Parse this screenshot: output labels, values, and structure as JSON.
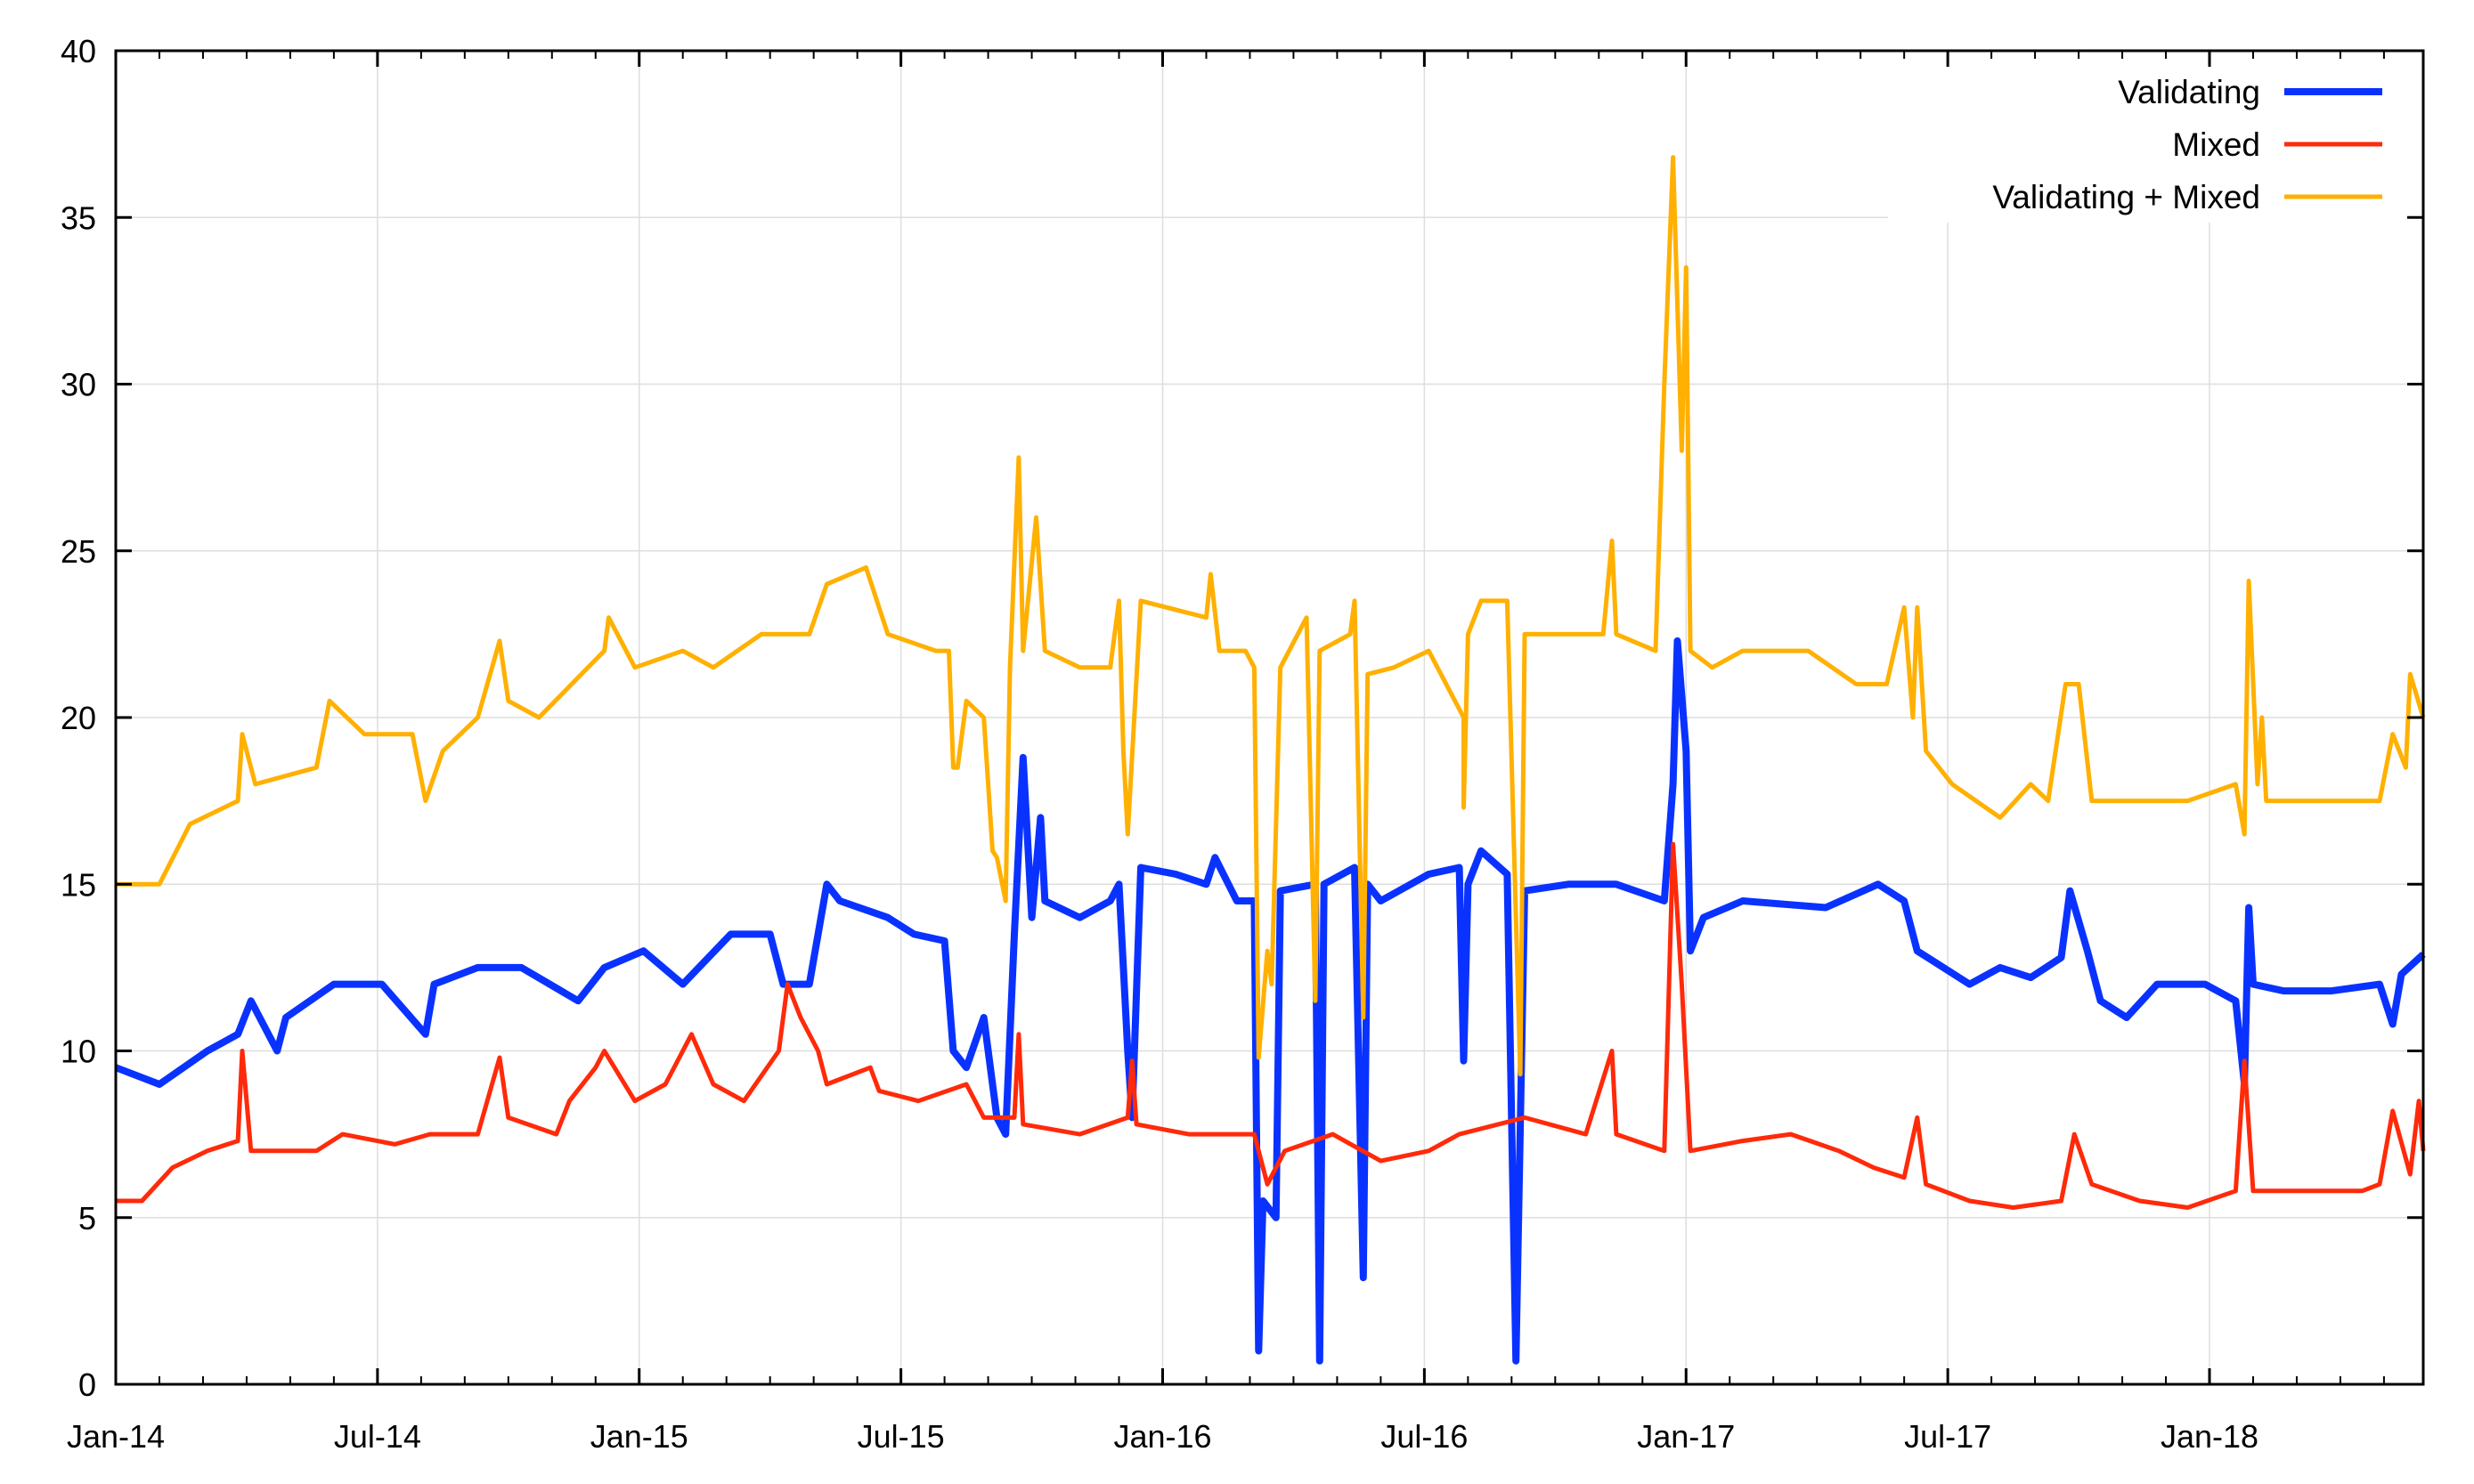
{
  "chart_data": {
    "type": "line",
    "title": "",
    "xlabel": "",
    "ylabel": "",
    "x_unit": "months since Jan-14",
    "xlim": [
      0,
      52.9
    ],
    "ylim": [
      0,
      40
    ],
    "grid": true,
    "legend_position": "top-right",
    "x_ticks": [
      {
        "value": 0,
        "label": "Jan-14"
      },
      {
        "value": 6,
        "label": "Jul-14"
      },
      {
        "value": 12,
        "label": "Jan-15"
      },
      {
        "value": 18,
        "label": "Jul-15"
      },
      {
        "value": 24,
        "label": "Jan-16"
      },
      {
        "value": 30,
        "label": "Jul-16"
      },
      {
        "value": 36,
        "label": "Jan-17"
      },
      {
        "value": 42,
        "label": "Jul-17"
      },
      {
        "value": 48,
        "label": "Jan-18"
      }
    ],
    "y_ticks": [
      {
        "value": 0,
        "label": "0"
      },
      {
        "value": 5,
        "label": "5"
      },
      {
        "value": 10,
        "label": "10"
      },
      {
        "value": 15,
        "label": "15"
      },
      {
        "value": 20,
        "label": "20"
      },
      {
        "value": 25,
        "label": "25"
      },
      {
        "value": 30,
        "label": "30"
      },
      {
        "value": 35,
        "label": "35"
      },
      {
        "value": 40,
        "label": "40"
      }
    ],
    "series": [
      {
        "name": "Validating",
        "color": "#0a32ff",
        "points": [
          [
            0,
            9.5
          ],
          [
            1.0,
            9
          ],
          [
            2.1,
            10
          ],
          [
            2.8,
            10.5
          ],
          [
            3.1,
            11.5
          ],
          [
            3.7,
            10
          ],
          [
            3.9,
            11
          ],
          [
            5.0,
            12
          ],
          [
            6.1,
            12
          ],
          [
            7.1,
            10.5
          ],
          [
            7.3,
            12
          ],
          [
            8.3,
            12.5
          ],
          [
            9.3,
            12.5
          ],
          [
            10.6,
            11.5
          ],
          [
            11.2,
            12.5
          ],
          [
            12.1,
            13
          ],
          [
            13.0,
            12
          ],
          [
            14.1,
            13.5
          ],
          [
            15.0,
            13.5
          ],
          [
            15.3,
            12
          ],
          [
            15.9,
            12
          ],
          [
            16.3,
            15
          ],
          [
            16.6,
            14.5
          ],
          [
            17.7,
            14
          ],
          [
            18.3,
            13.5
          ],
          [
            19.0,
            13.3
          ],
          [
            19.2,
            10
          ],
          [
            19.5,
            9.5
          ],
          [
            19.9,
            11
          ],
          [
            20.2,
            8
          ],
          [
            20.4,
            7.5
          ],
          [
            20.6,
            13.5
          ],
          [
            20.8,
            18.8
          ],
          [
            21.0,
            14
          ],
          [
            21.2,
            17
          ],
          [
            21.3,
            14.5
          ],
          [
            22.1,
            14
          ],
          [
            22.8,
            14.5
          ],
          [
            23.0,
            15
          ],
          [
            23.2,
            10
          ],
          [
            23.3,
            8
          ],
          [
            23.5,
            15.5
          ],
          [
            24.3,
            15.3
          ],
          [
            25.0,
            15
          ],
          [
            25.2,
            15.8
          ],
          [
            25.7,
            14.5
          ],
          [
            26.1,
            14.5
          ],
          [
            26.2,
            1
          ],
          [
            26.3,
            5.5
          ],
          [
            26.6,
            5
          ],
          [
            26.7,
            14.8
          ],
          [
            27.5,
            15
          ],
          [
            27.6,
            0.7
          ],
          [
            27.7,
            15
          ],
          [
            28.4,
            15.5
          ],
          [
            28.6,
            3.2
          ],
          [
            28.7,
            15
          ],
          [
            29.0,
            14.5
          ],
          [
            30.1,
            15.3
          ],
          [
            30.8,
            15.5
          ],
          [
            30.9,
            9.7
          ],
          [
            31.0,
            15
          ],
          [
            31.3,
            16
          ],
          [
            31.9,
            15.3
          ],
          [
            32.1,
            0.7
          ],
          [
            32.3,
            14.8
          ],
          [
            33.3,
            15
          ],
          [
            34.4,
            15
          ],
          [
            35.5,
            14.5
          ],
          [
            35.7,
            18
          ],
          [
            35.8,
            22.3
          ],
          [
            36.0,
            19
          ],
          [
            36.1,
            13
          ],
          [
            36.4,
            14
          ],
          [
            37.3,
            14.5
          ],
          [
            39.2,
            14.3
          ],
          [
            40.4,
            15
          ],
          [
            41.0,
            14.5
          ],
          [
            41.3,
            13
          ],
          [
            41.9,
            12.5
          ],
          [
            42.5,
            12
          ],
          [
            43.2,
            12.5
          ],
          [
            43.9,
            12.2
          ],
          [
            44.6,
            12.8
          ],
          [
            44.8,
            14.8
          ],
          [
            45.2,
            13
          ],
          [
            45.5,
            11.5
          ],
          [
            46.1,
            11
          ],
          [
            46.8,
            12
          ],
          [
            47.9,
            12
          ],
          [
            48.6,
            11.5
          ],
          [
            48.8,
            9
          ],
          [
            48.9,
            14.3
          ],
          [
            49.0,
            12
          ],
          [
            49.7,
            11.8
          ],
          [
            50.8,
            11.8
          ],
          [
            51.9,
            12
          ],
          [
            52.2,
            10.8
          ],
          [
            52.4,
            12.3
          ],
          [
            52.9,
            12.9
          ]
        ]
      },
      {
        "name": "Mixed",
        "color": "#ff2a0a",
        "points": [
          [
            0,
            5.5
          ],
          [
            0.6,
            5.5
          ],
          [
            1.3,
            6.5
          ],
          [
            2.1,
            7
          ],
          [
            2.8,
            7.3
          ],
          [
            2.9,
            10
          ],
          [
            3.1,
            7
          ],
          [
            4.6,
            7
          ],
          [
            5.2,
            7.5
          ],
          [
            6.4,
            7.2
          ],
          [
            7.2,
            7.5
          ],
          [
            8.3,
            7.5
          ],
          [
            8.8,
            9.8
          ],
          [
            9.0,
            8
          ],
          [
            10.1,
            7.5
          ],
          [
            10.4,
            8.5
          ],
          [
            11.0,
            9.5
          ],
          [
            11.2,
            10
          ],
          [
            11.9,
            8.5
          ],
          [
            12.6,
            9
          ],
          [
            13.2,
            10.5
          ],
          [
            13.7,
            9
          ],
          [
            14.4,
            8.5
          ],
          [
            15.2,
            10
          ],
          [
            15.4,
            12
          ],
          [
            15.7,
            11
          ],
          [
            16.1,
            10
          ],
          [
            16.3,
            9
          ],
          [
            17.3,
            9.5
          ],
          [
            17.5,
            8.8
          ],
          [
            18.4,
            8.5
          ],
          [
            19.5,
            9
          ],
          [
            19.9,
            8
          ],
          [
            20.6,
            8
          ],
          [
            20.7,
            10.5
          ],
          [
            20.8,
            7.8
          ],
          [
            22.1,
            7.5
          ],
          [
            23.2,
            8
          ],
          [
            23.3,
            9.7
          ],
          [
            23.4,
            7.8
          ],
          [
            24.6,
            7.5
          ],
          [
            26.1,
            7.5
          ],
          [
            26.4,
            6
          ],
          [
            26.8,
            7
          ],
          [
            27.9,
            7.5
          ],
          [
            29.0,
            6.7
          ],
          [
            30.1,
            7
          ],
          [
            30.8,
            7.5
          ],
          [
            32.3,
            8
          ],
          [
            33.7,
            7.5
          ],
          [
            34.3,
            10
          ],
          [
            34.4,
            7.5
          ],
          [
            35.5,
            7
          ],
          [
            35.7,
            16.2
          ],
          [
            35.9,
            12
          ],
          [
            36.1,
            7
          ],
          [
            37.3,
            7.3
          ],
          [
            38.4,
            7.5
          ],
          [
            39.5,
            7
          ],
          [
            40.3,
            6.5
          ],
          [
            41.0,
            6.2
          ],
          [
            41.3,
            8
          ],
          [
            41.5,
            6
          ],
          [
            42.5,
            5.5
          ],
          [
            43.5,
            5.3
          ],
          [
            44.6,
            5.5
          ],
          [
            44.9,
            7.5
          ],
          [
            45.3,
            6
          ],
          [
            46.4,
            5.5
          ],
          [
            47.5,
            5.3
          ],
          [
            48.6,
            5.8
          ],
          [
            48.8,
            9.7
          ],
          [
            49.0,
            5.8
          ],
          [
            50.4,
            5.8
          ],
          [
            51.5,
            5.8
          ],
          [
            51.9,
            6
          ],
          [
            52.2,
            8.2
          ],
          [
            52.6,
            6.3
          ],
          [
            52.8,
            8.5
          ],
          [
            52.9,
            7
          ]
        ]
      },
      {
        "name": "Validating + Mixed",
        "color": "#ffb000",
        "points": [
          [
            0,
            15
          ],
          [
            1.0,
            15
          ],
          [
            1.7,
            16.8
          ],
          [
            2.8,
            17.5
          ],
          [
            2.9,
            19.5
          ],
          [
            3.2,
            18
          ],
          [
            4.6,
            18.5
          ],
          [
            4.9,
            20.5
          ],
          [
            5.7,
            19.5
          ],
          [
            6.8,
            19.5
          ],
          [
            7.1,
            17.5
          ],
          [
            7.5,
            19
          ],
          [
            8.3,
            20
          ],
          [
            8.8,
            22.3
          ],
          [
            9.0,
            20.5
          ],
          [
            9.7,
            20
          ],
          [
            11.2,
            22
          ],
          [
            11.3,
            23
          ],
          [
            11.9,
            21.5
          ],
          [
            13.0,
            22
          ],
          [
            13.7,
            21.5
          ],
          [
            14.8,
            22.5
          ],
          [
            15.9,
            22.5
          ],
          [
            16.3,
            24
          ],
          [
            17.2,
            24.5
          ],
          [
            17.7,
            22.5
          ],
          [
            18.8,
            22
          ],
          [
            19.1,
            22
          ],
          [
            19.2,
            18.5
          ],
          [
            19.3,
            18.5
          ],
          [
            19.5,
            20.5
          ],
          [
            19.9,
            20
          ],
          [
            20.1,
            16
          ],
          [
            20.2,
            15.8
          ],
          [
            20.4,
            14.5
          ],
          [
            20.5,
            21.5
          ],
          [
            20.7,
            27.8
          ],
          [
            20.8,
            22
          ],
          [
            21.1,
            26
          ],
          [
            21.3,
            22
          ],
          [
            22.1,
            21.5
          ],
          [
            22.8,
            21.5
          ],
          [
            23.0,
            23.5
          ],
          [
            23.1,
            19
          ],
          [
            23.2,
            16.5
          ],
          [
            23.5,
            23.5
          ],
          [
            25.0,
            23
          ],
          [
            25.1,
            24.3
          ],
          [
            25.3,
            22
          ],
          [
            25.9,
            22
          ],
          [
            26.1,
            21.5
          ],
          [
            26.2,
            9.8
          ],
          [
            26.4,
            13
          ],
          [
            26.5,
            12
          ],
          [
            26.7,
            21.5
          ],
          [
            27.3,
            23
          ],
          [
            27.5,
            11.5
          ],
          [
            27.6,
            22
          ],
          [
            28.3,
            22.5
          ],
          [
            28.4,
            23.5
          ],
          [
            28.6,
            11
          ],
          [
            28.7,
            21.3
          ],
          [
            29.3,
            21.5
          ],
          [
            30.1,
            22
          ],
          [
            30.9,
            20
          ],
          [
            30.9,
            17.3
          ],
          [
            31.0,
            22.5
          ],
          [
            31.3,
            23.5
          ],
          [
            31.9,
            23.5
          ],
          [
            32.1,
            14
          ],
          [
            32.2,
            9.3
          ],
          [
            32.3,
            22.5
          ],
          [
            33.0,
            22.5
          ],
          [
            34.1,
            22.5
          ],
          [
            34.3,
            25.3
          ],
          [
            34.4,
            22.5
          ],
          [
            35.3,
            22
          ],
          [
            35.5,
            30
          ],
          [
            35.7,
            36.8
          ],
          [
            35.9,
            28
          ],
          [
            36.0,
            33.5
          ],
          [
            36.1,
            22
          ],
          [
            36.6,
            21.5
          ],
          [
            37.3,
            22
          ],
          [
            38.8,
            22
          ],
          [
            39.9,
            21
          ],
          [
            40.6,
            21
          ],
          [
            41.0,
            23.3
          ],
          [
            41.2,
            20
          ],
          [
            41.3,
            23.3
          ],
          [
            41.5,
            19
          ],
          [
            42.1,
            18
          ],
          [
            43.2,
            17
          ],
          [
            43.9,
            18
          ],
          [
            44.3,
            17.5
          ],
          [
            44.7,
            21
          ],
          [
            45.0,
            21
          ],
          [
            45.3,
            17.5
          ],
          [
            46.3,
            17.5
          ],
          [
            47.5,
            17.5
          ],
          [
            48.6,
            18
          ],
          [
            48.8,
            16.5
          ],
          [
            48.9,
            24.1
          ],
          [
            49.1,
            18
          ],
          [
            49.2,
            20
          ],
          [
            49.3,
            17.5
          ],
          [
            50.8,
            17.5
          ],
          [
            51.9,
            17.5
          ],
          [
            52.2,
            19.5
          ],
          [
            52.5,
            18.5
          ],
          [
            52.6,
            21.3
          ],
          [
            52.9,
            20
          ]
        ]
      }
    ]
  }
}
